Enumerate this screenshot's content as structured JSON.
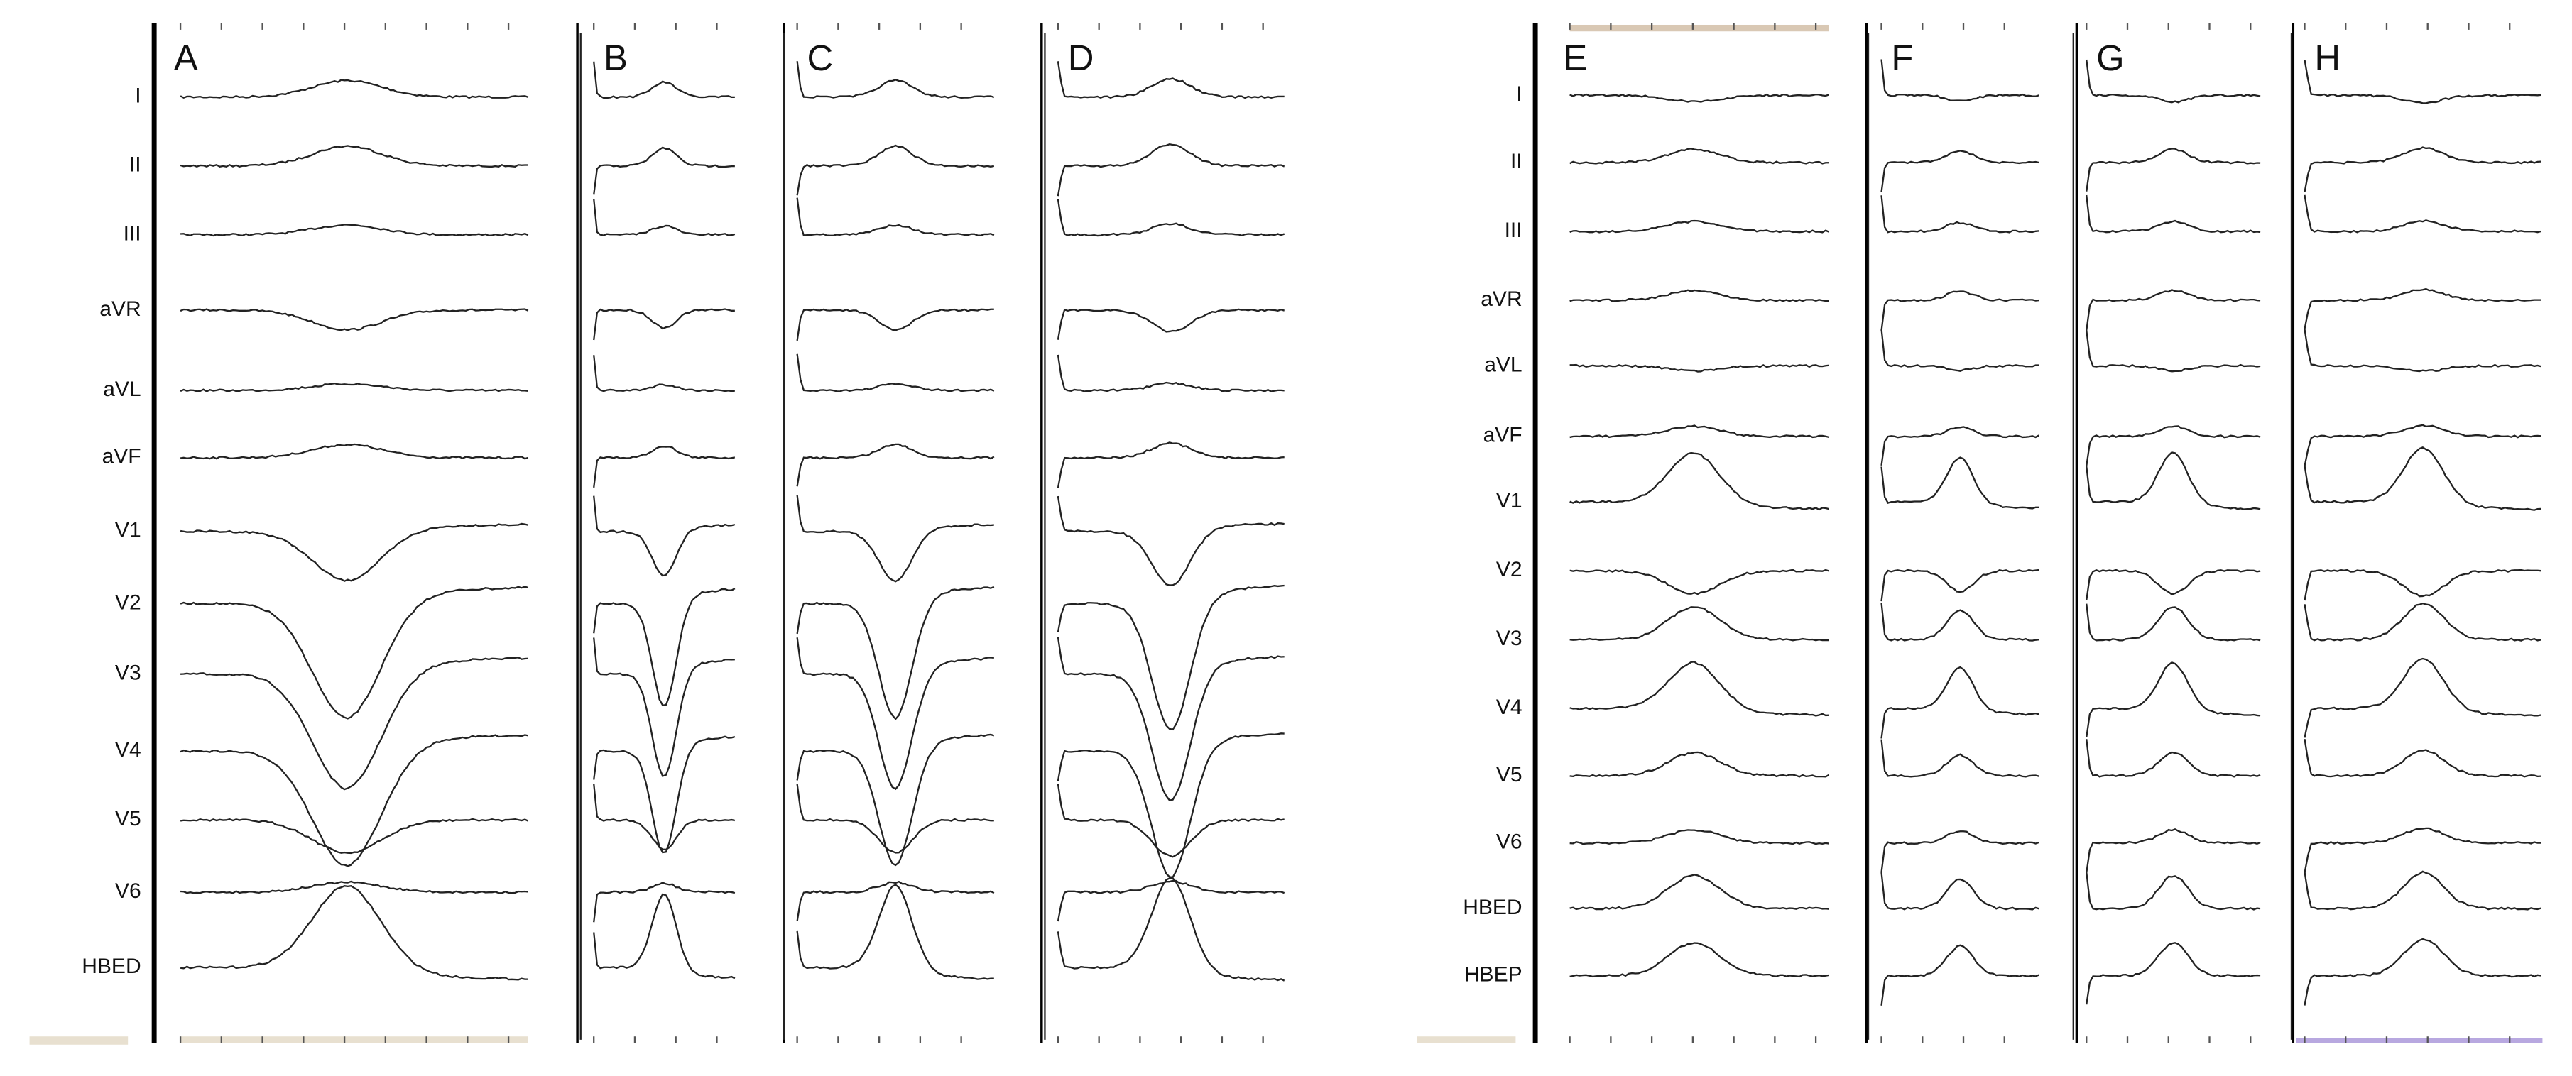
{
  "left_figure": {
    "panels": [
      "A",
      "B",
      "C",
      "D"
    ],
    "leads": [
      "I",
      "II",
      "III",
      "aVR",
      "aVL",
      "aVF",
      "V1",
      "V2",
      "V3",
      "V4",
      "V5",
      "V6",
      "HBED"
    ]
  },
  "right_figure": {
    "panels": [
      "E",
      "F",
      "G",
      "H"
    ],
    "leads": [
      "I",
      "II",
      "III",
      "aVR",
      "aVL",
      "aVF",
      "V1",
      "V2",
      "V3",
      "V4",
      "V5",
      "V6",
      "HBED",
      "HBEP"
    ]
  }
}
